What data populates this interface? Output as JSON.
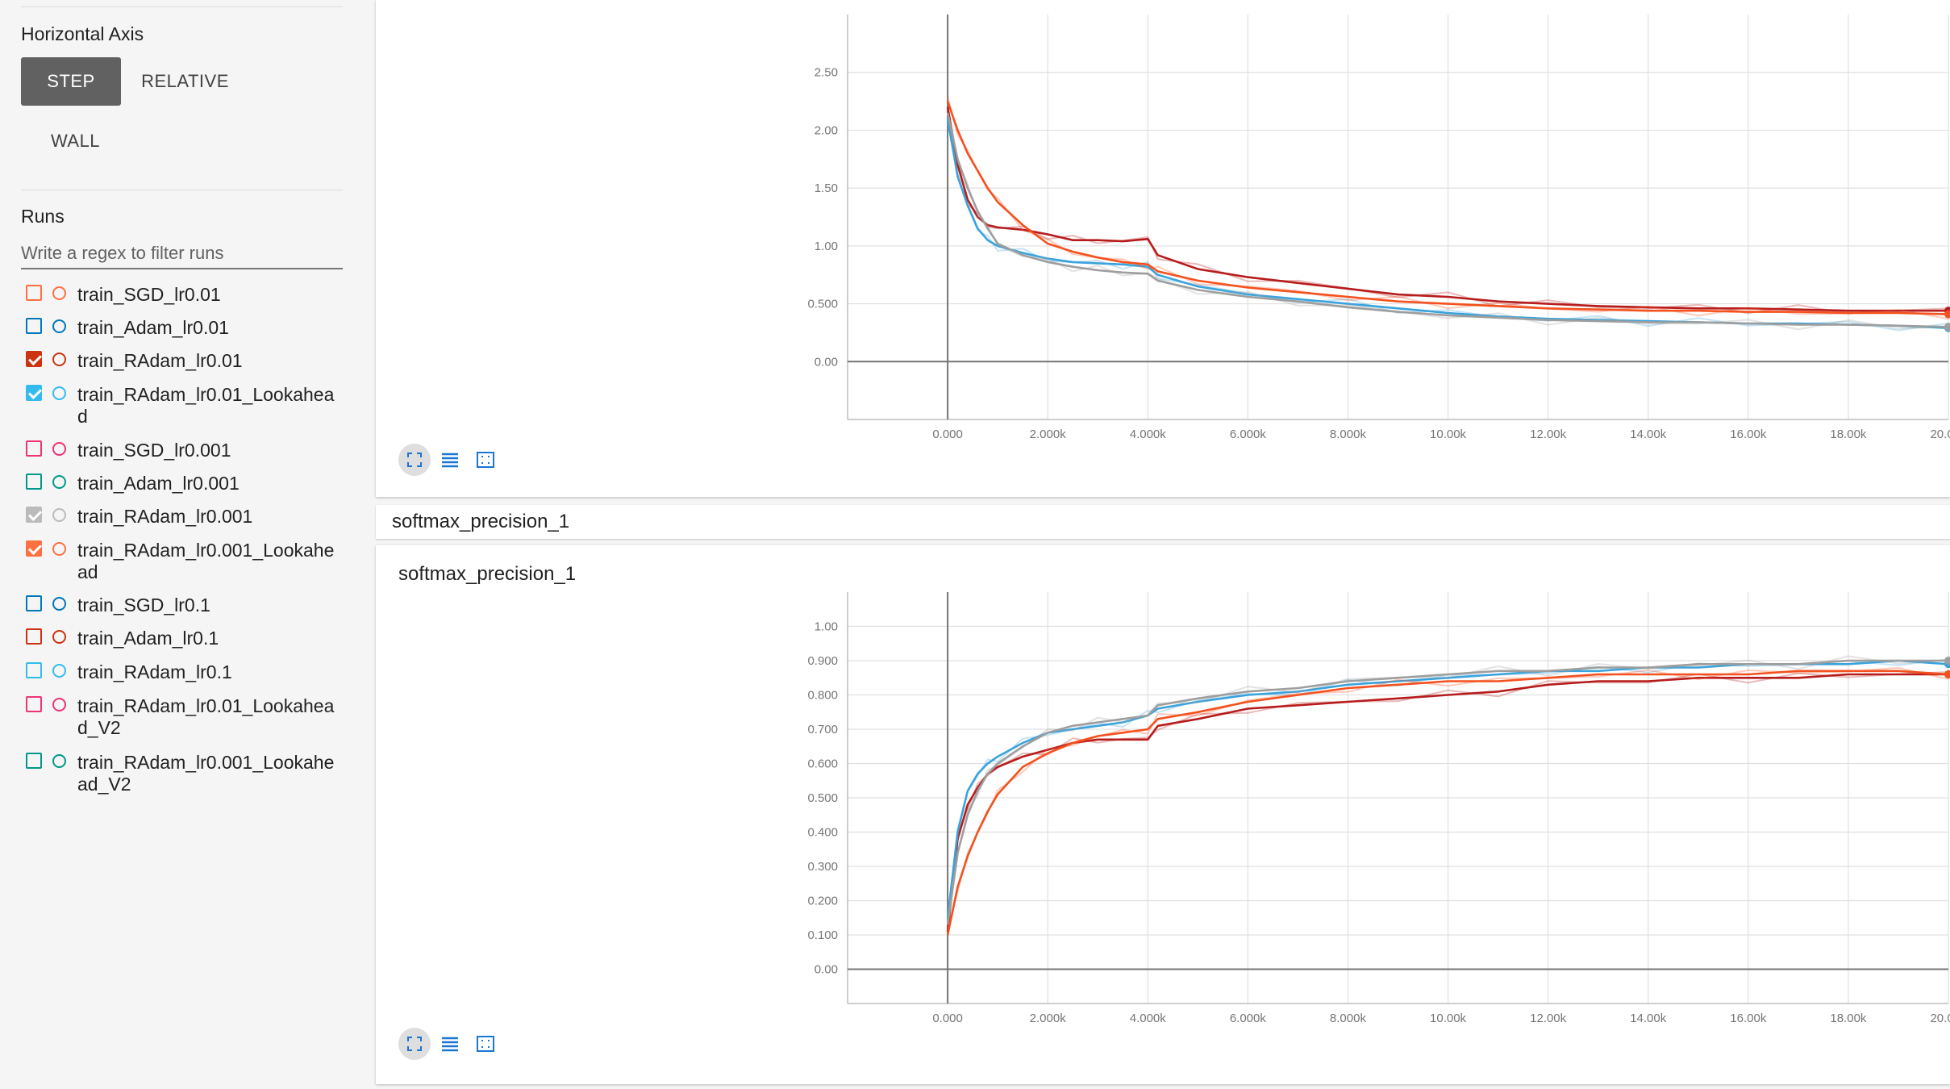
{
  "sidebar": {
    "horizontal_axis": {
      "title": "Horizontal Axis",
      "buttons": [
        "STEP",
        "RELATIVE",
        "WALL"
      ],
      "selected": "STEP"
    },
    "runs": {
      "title": "Runs",
      "filter_placeholder": "Write a regex to filter runs",
      "items": [
        {
          "label": "train_SGD_lr0.01",
          "color": "#ff7043",
          "checked": false
        },
        {
          "label": "train_Adam_lr0.01",
          "color": "#0077bb",
          "checked": false
        },
        {
          "label": "train_RAdam_lr0.01",
          "color": "#cc3311",
          "checked": true
        },
        {
          "label": "train_RAdam_lr0.01_Lookahead",
          "color": "#33bbee",
          "checked": true
        },
        {
          "label": "train_SGD_lr0.001",
          "color": "#ee3377",
          "checked": false
        },
        {
          "label": "train_Adam_lr0.001",
          "color": "#009988",
          "checked": false
        },
        {
          "label": "train_RAdam_lr0.001",
          "color": "#bbbbbb",
          "checked": true
        },
        {
          "label": "train_RAdam_lr0.001_Lookahead",
          "color": "#ff7043",
          "checked": true
        },
        {
          "label": "train_SGD_lr0.1",
          "color": "#0077bb",
          "checked": false
        },
        {
          "label": "train_Adam_lr0.1",
          "color": "#cc3311",
          "checked": false
        },
        {
          "label": "train_RAdam_lr0.1",
          "color": "#33bbee",
          "checked": false
        },
        {
          "label": "train_RAdam_lr0.01_Lookahead_V2",
          "color": "#ee3377",
          "checked": false
        },
        {
          "label": "train_RAdam_lr0.001_Lookahead_V2",
          "color": "#009988",
          "checked": false
        }
      ]
    }
  },
  "main": {
    "group_header": "softmax_precision_1",
    "tool_icons": [
      "expand-icon",
      "list-icon",
      "fit-domain-icon"
    ]
  },
  "colors": {
    "selected_button": "#616161",
    "gridline": "#e0e0e0",
    "axis": "#757575"
  },
  "chart_data": [
    {
      "type": "line",
      "title": "",
      "xlabel": "",
      "ylabel": "",
      "xlim": [
        -2000,
        20000
      ],
      "ylim": [
        -0.5,
        3.0
      ],
      "x_ticks": [
        "0.000",
        "2.000k",
        "4.000k",
        "6.000k",
        "8.000k",
        "10.00k",
        "12.00k",
        "14.00k",
        "16.00k",
        "18.00k",
        "20.00k"
      ],
      "y_ticks": [
        "0.00",
        "0.500",
        "1.00",
        "1.50",
        "2.00",
        "2.50"
      ],
      "grid": true,
      "x": [
        0,
        200,
        400,
        600,
        800,
        1000,
        1500,
        2000,
        2500,
        3000,
        3500,
        4000,
        4200,
        5000,
        6000,
        7000,
        8000,
        9000,
        10000,
        11000,
        12000,
        13000,
        14000,
        15000,
        16000,
        17000,
        18000,
        19000,
        20000
      ],
      "series": [
        {
          "run": "train_RAdam_lr0.01",
          "color": "#b71c1c",
          "values": [
            2.2,
            1.7,
            1.4,
            1.25,
            1.18,
            1.16,
            1.14,
            1.1,
            1.05,
            1.05,
            1.04,
            1.06,
            0.92,
            0.8,
            0.73,
            0.68,
            0.63,
            0.58,
            0.56,
            0.52,
            0.5,
            0.48,
            0.47,
            0.46,
            0.46,
            0.45,
            0.44,
            0.44,
            0.44
          ]
        },
        {
          "run": "train_RAdam_lr0.01_Lookahead",
          "color": "#3aa3dc",
          "values": [
            2.1,
            1.6,
            1.35,
            1.15,
            1.05,
            1.0,
            0.94,
            0.89,
            0.86,
            0.85,
            0.84,
            0.82,
            0.75,
            0.65,
            0.58,
            0.54,
            0.5,
            0.46,
            0.42,
            0.39,
            0.37,
            0.36,
            0.35,
            0.34,
            0.33,
            0.33,
            0.32,
            0.31,
            0.29
          ]
        },
        {
          "run": "train_RAdam_lr0.001",
          "color": "#9e9e9e",
          "values": [
            2.15,
            1.75,
            1.5,
            1.3,
            1.15,
            1.02,
            0.92,
            0.86,
            0.82,
            0.79,
            0.77,
            0.76,
            0.7,
            0.62,
            0.56,
            0.52,
            0.47,
            0.43,
            0.4,
            0.38,
            0.36,
            0.35,
            0.34,
            0.34,
            0.33,
            0.32,
            0.32,
            0.31,
            0.3
          ]
        },
        {
          "run": "train_RAdam_lr0.001_Lookahead",
          "color": "#f4511e",
          "values": [
            2.25,
            2.0,
            1.8,
            1.65,
            1.5,
            1.38,
            1.18,
            1.02,
            0.95,
            0.9,
            0.86,
            0.84,
            0.78,
            0.7,
            0.64,
            0.6,
            0.56,
            0.52,
            0.5,
            0.48,
            0.46,
            0.45,
            0.44,
            0.44,
            0.43,
            0.43,
            0.42,
            0.42,
            0.41
          ]
        }
      ]
    },
    {
      "type": "line",
      "title": "softmax_precision_1",
      "xlabel": "",
      "ylabel": "",
      "xlim": [
        -2000,
        20000
      ],
      "ylim": [
        -0.1,
        1.1
      ],
      "x_ticks": [
        "0.000",
        "2.000k",
        "4.000k",
        "6.000k",
        "8.000k",
        "10.00k",
        "12.00k",
        "14.00k",
        "16.00k",
        "18.00k",
        "20.00k"
      ],
      "y_ticks": [
        "0.00",
        "0.100",
        "0.200",
        "0.300",
        "0.400",
        "0.500",
        "0.600",
        "0.700",
        "0.800",
        "0.900",
        "1.00"
      ],
      "grid": true,
      "x": [
        0,
        200,
        400,
        600,
        800,
        1000,
        1500,
        2000,
        2500,
        3000,
        3500,
        4000,
        4200,
        5000,
        6000,
        7000,
        8000,
        9000,
        10000,
        11000,
        12000,
        13000,
        14000,
        15000,
        16000,
        17000,
        18000,
        19000,
        20000
      ],
      "series": [
        {
          "run": "train_RAdam_lr0.01",
          "color": "#b71c1c",
          "values": [
            0.11,
            0.38,
            0.48,
            0.53,
            0.57,
            0.59,
            0.62,
            0.64,
            0.66,
            0.67,
            0.67,
            0.67,
            0.71,
            0.73,
            0.76,
            0.77,
            0.78,
            0.79,
            0.8,
            0.81,
            0.83,
            0.84,
            0.84,
            0.85,
            0.85,
            0.85,
            0.86,
            0.86,
            0.86
          ]
        },
        {
          "run": "train_RAdam_lr0.01_Lookahead",
          "color": "#3aa3dc",
          "values": [
            0.15,
            0.4,
            0.52,
            0.57,
            0.6,
            0.62,
            0.66,
            0.69,
            0.7,
            0.71,
            0.72,
            0.74,
            0.76,
            0.78,
            0.8,
            0.81,
            0.83,
            0.84,
            0.85,
            0.86,
            0.87,
            0.87,
            0.88,
            0.88,
            0.89,
            0.89,
            0.89,
            0.9,
            0.89
          ]
        },
        {
          "run": "train_RAdam_lr0.001",
          "color": "#9e9e9e",
          "values": [
            0.13,
            0.34,
            0.45,
            0.52,
            0.57,
            0.6,
            0.65,
            0.69,
            0.71,
            0.72,
            0.73,
            0.74,
            0.77,
            0.79,
            0.81,
            0.82,
            0.84,
            0.85,
            0.86,
            0.87,
            0.87,
            0.88,
            0.88,
            0.89,
            0.89,
            0.89,
            0.9,
            0.9,
            0.9
          ]
        },
        {
          "run": "train_RAdam_lr0.001_Lookahead",
          "color": "#f4511e",
          "values": [
            0.1,
            0.24,
            0.33,
            0.4,
            0.46,
            0.51,
            0.59,
            0.63,
            0.66,
            0.68,
            0.69,
            0.7,
            0.73,
            0.75,
            0.78,
            0.8,
            0.82,
            0.83,
            0.84,
            0.84,
            0.85,
            0.86,
            0.86,
            0.86,
            0.86,
            0.87,
            0.87,
            0.87,
            0.86
          ]
        }
      ]
    }
  ]
}
